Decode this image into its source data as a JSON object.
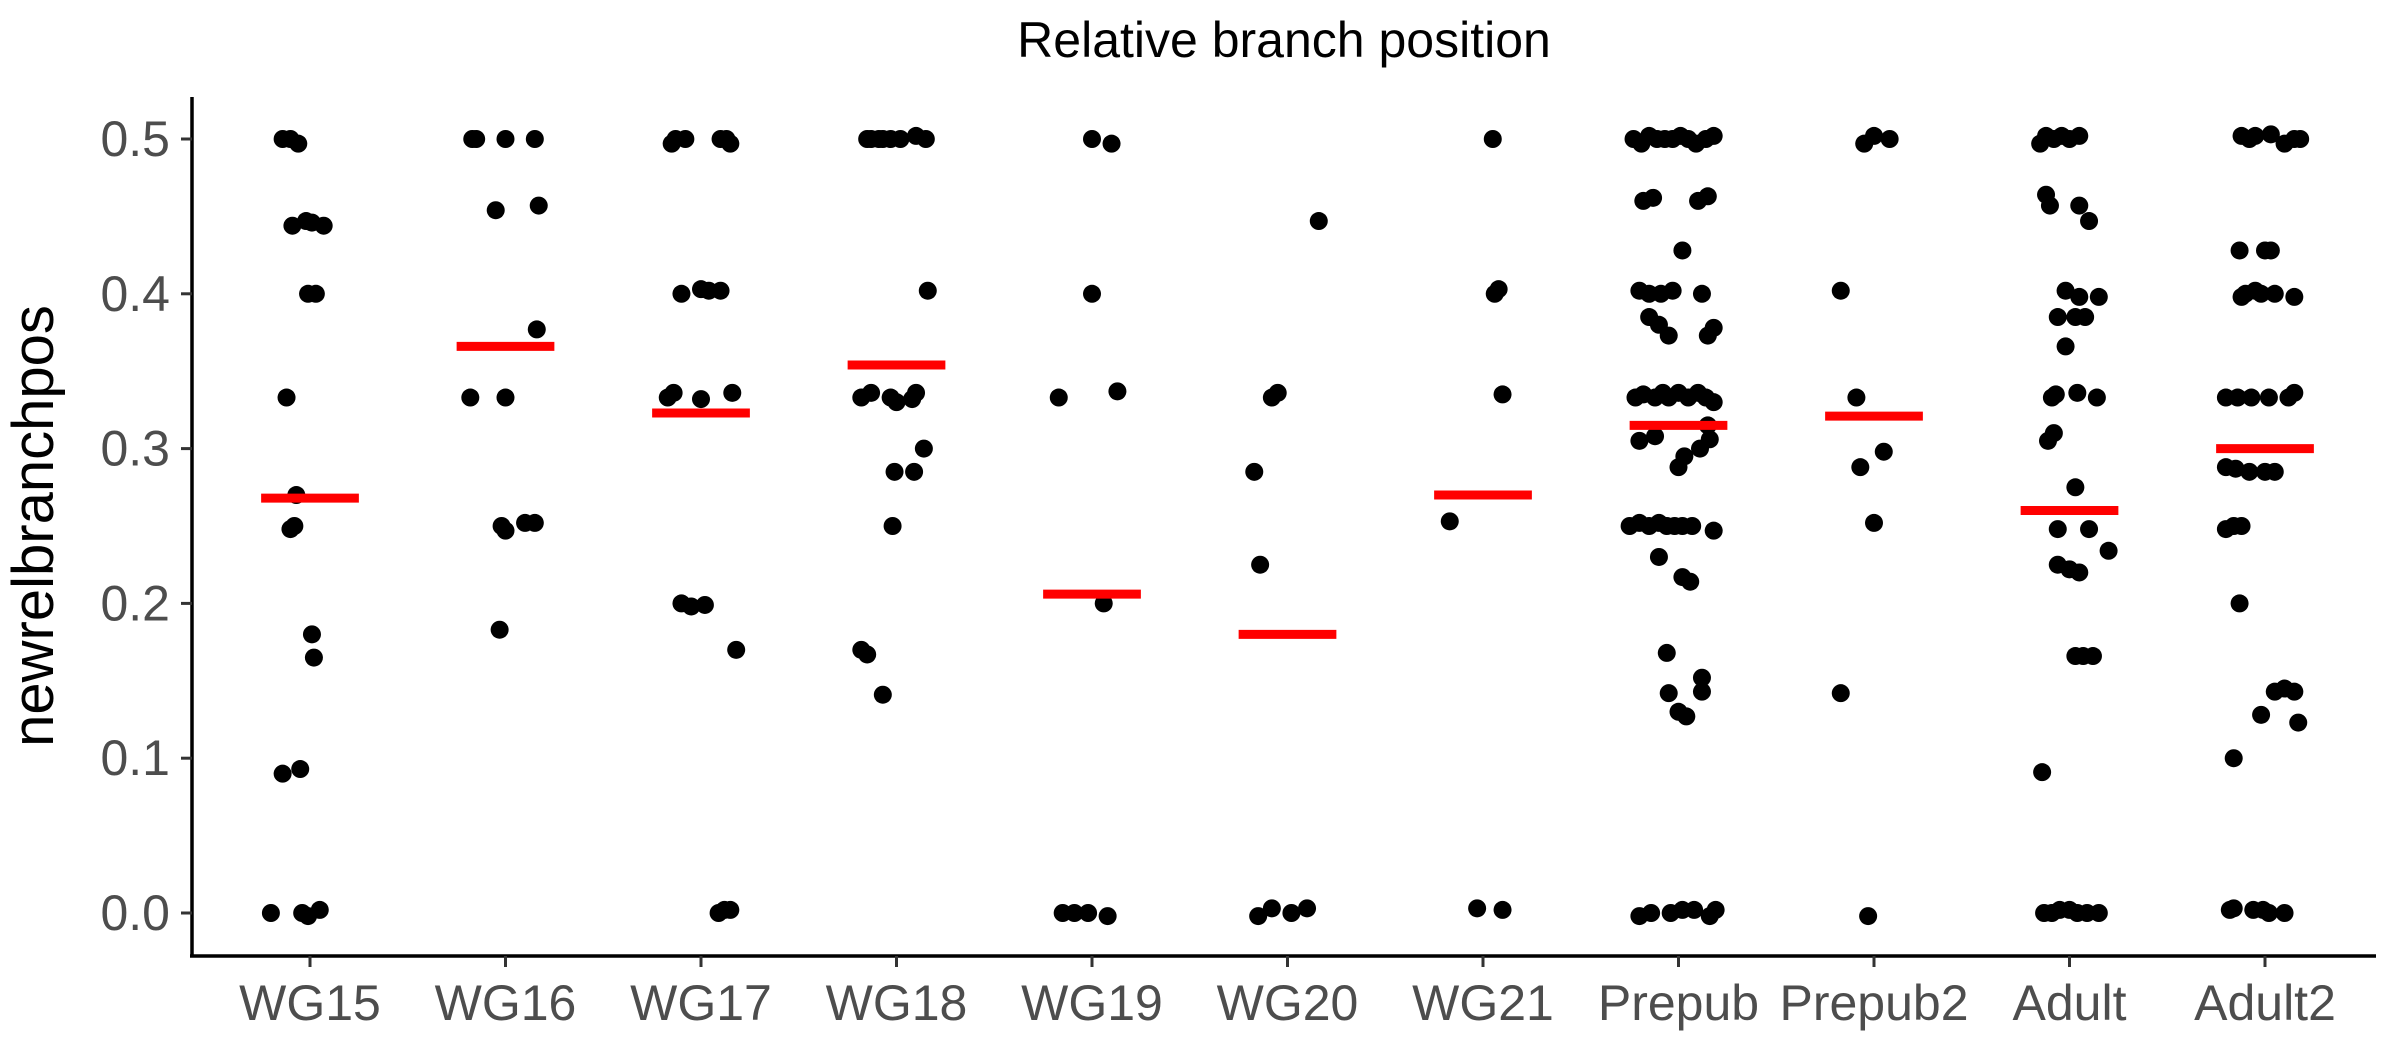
{
  "chart_data": {
    "type": "scatter",
    "title": "Relative branch position",
    "xlabel": "",
    "ylabel": "newrelbranchpos",
    "ylim": [
      -0.027,
      0.527
    ],
    "yticks": [
      0.0,
      0.1,
      0.2,
      0.3,
      0.4,
      0.5
    ],
    "ytick_labels": [
      "0.0",
      "0.1",
      "0.2",
      "0.3",
      "0.4",
      "0.5"
    ],
    "grid": false,
    "categories": [
      "WG15",
      "WG16",
      "WG17",
      "WG18",
      "WG19",
      "WG20",
      "WG21",
      "Prepub",
      "Prepub2",
      "Adult",
      "Adult2"
    ],
    "point_color": "#000000",
    "mean_color": "#ff0000",
    "means": [
      0.268,
      0.366,
      0.323,
      0.354,
      0.206,
      0.18,
      0.27,
      0.315,
      0.321,
      0.26,
      0.3
    ],
    "points": [
      [
        [
          -0.2,
          0.0
        ],
        [
          -0.14,
          0.5
        ],
        [
          -0.1,
          0.5
        ],
        [
          -0.06,
          0.497
        ],
        [
          -0.14,
          0.09
        ],
        [
          -0.05,
          0.093
        ],
        [
          -0.09,
          0.444
        ],
        [
          -0.02,
          0.447
        ],
        [
          0.01,
          0.446
        ],
        [
          0.07,
          0.444
        ],
        [
          -0.01,
          0.4
        ],
        [
          0.03,
          0.4
        ],
        [
          -0.12,
          0.333
        ],
        [
          -0.08,
          0.25
        ],
        [
          -0.1,
          0.248
        ],
        [
          -0.07,
          0.27
        ],
        [
          0.01,
          0.18
        ],
        [
          0.02,
          0.165
        ],
        [
          -0.04,
          0.0
        ],
        [
          -0.01,
          -0.002
        ],
        [
          0.05,
          0.002
        ]
      ],
      [
        [
          -0.18,
          0.333
        ],
        [
          -0.17,
          0.5
        ],
        [
          -0.15,
          0.5
        ],
        [
          0.0,
          0.5
        ],
        [
          0.15,
          0.5
        ],
        [
          -0.05,
          0.454
        ],
        [
          0.17,
          0.457
        ],
        [
          0.16,
          0.377
        ],
        [
          0.0,
          0.333
        ],
        [
          -0.02,
          0.25
        ],
        [
          0.0,
          0.247
        ],
        [
          0.1,
          0.252
        ],
        [
          0.15,
          0.252
        ],
        [
          -0.03,
          0.183
        ]
      ],
      [
        [
          -0.15,
          0.497
        ],
        [
          -0.13,
          0.5
        ],
        [
          -0.08,
          0.5
        ],
        [
          0.1,
          0.5
        ],
        [
          0.13,
          0.5
        ],
        [
          0.15,
          0.497
        ],
        [
          -0.17,
          0.333
        ],
        [
          -0.14,
          0.336
        ],
        [
          0.0,
          0.332
        ],
        [
          0.16,
          0.336
        ],
        [
          -0.1,
          0.4
        ],
        [
          0.0,
          0.403
        ],
        [
          0.04,
          0.402
        ],
        [
          0.1,
          0.402
        ],
        [
          -0.1,
          0.2
        ],
        [
          -0.05,
          0.198
        ],
        [
          0.02,
          0.199
        ],
        [
          0.18,
          0.17
        ],
        [
          0.09,
          0.0
        ],
        [
          0.12,
          0.002
        ],
        [
          0.15,
          0.002
        ]
      ],
      [
        [
          -0.15,
          0.5
        ],
        [
          -0.13,
          0.5
        ],
        [
          -0.09,
          0.5
        ],
        [
          -0.07,
          0.5
        ],
        [
          -0.03,
          0.5
        ],
        [
          0.02,
          0.5
        ],
        [
          0.1,
          0.502
        ],
        [
          0.15,
          0.5
        ],
        [
          0.16,
          0.402
        ],
        [
          -0.18,
          0.333
        ],
        [
          -0.13,
          0.336
        ],
        [
          -0.03,
          0.333
        ],
        [
          0.0,
          0.33
        ],
        [
          0.08,
          0.332
        ],
        [
          0.1,
          0.336
        ],
        [
          0.14,
          0.3
        ],
        [
          -0.01,
          0.285
        ],
        [
          0.09,
          0.285
        ],
        [
          -0.02,
          0.25
        ],
        [
          -0.18,
          0.17
        ],
        [
          -0.15,
          0.167
        ],
        [
          -0.07,
          0.141
        ]
      ],
      [
        [
          0.0,
          0.5
        ],
        [
          0.1,
          0.497
        ],
        [
          -0.17,
          0.333
        ],
        [
          0.0,
          0.4
        ],
        [
          0.13,
          0.337
        ],
        [
          0.06,
          0.2
        ],
        [
          -0.15,
          0.0
        ],
        [
          -0.09,
          0.0
        ],
        [
          -0.02,
          0.0
        ],
        [
          0.08,
          -0.002
        ]
      ],
      [
        [
          -0.17,
          0.285
        ],
        [
          -0.14,
          0.225
        ],
        [
          -0.08,
          0.333
        ],
        [
          -0.05,
          0.336
        ],
        [
          0.16,
          0.447
        ],
        [
          -0.15,
          -0.002
        ],
        [
          -0.08,
          0.003
        ],
        [
          0.02,
          0.0
        ],
        [
          0.1,
          0.003
        ]
      ],
      [
        [
          -0.17,
          0.253
        ],
        [
          0.05,
          0.5
        ],
        [
          0.06,
          0.4
        ],
        [
          0.08,
          0.403
        ],
        [
          0.1,
          0.335
        ],
        [
          -0.03,
          0.003
        ],
        [
          0.1,
          0.002
        ]
      ],
      [
        [
          -0.23,
          0.5
        ],
        [
          -0.19,
          0.497
        ],
        [
          -0.15,
          0.502
        ],
        [
          -0.11,
          0.5
        ],
        [
          -0.07,
          0.5
        ],
        [
          -0.03,
          0.5
        ],
        [
          0.01,
          0.502
        ],
        [
          0.05,
          0.5
        ],
        [
          0.09,
          0.497
        ],
        [
          0.14,
          0.5
        ],
        [
          0.18,
          0.502
        ],
        [
          -0.18,
          0.46
        ],
        [
          -0.13,
          0.462
        ],
        [
          0.1,
          0.46
        ],
        [
          0.15,
          0.463
        ],
        [
          0.02,
          0.428
        ],
        [
          -0.2,
          0.402
        ],
        [
          -0.15,
          0.4
        ],
        [
          -0.09,
          0.4
        ],
        [
          -0.03,
          0.402
        ],
        [
          0.12,
          0.4
        ],
        [
          -0.15,
          0.385
        ],
        [
          -0.1,
          0.38
        ],
        [
          -0.05,
          0.373
        ],
        [
          0.15,
          0.373
        ],
        [
          0.18,
          0.378
        ],
        [
          -0.22,
          0.333
        ],
        [
          -0.18,
          0.335
        ],
        [
          -0.12,
          0.333
        ],
        [
          -0.08,
          0.336
        ],
        [
          -0.05,
          0.333
        ],
        [
          0.0,
          0.336
        ],
        [
          0.05,
          0.333
        ],
        [
          0.1,
          0.336
        ],
        [
          0.14,
          0.333
        ],
        [
          0.18,
          0.33
        ],
        [
          0.15,
          0.315
        ],
        [
          -0.2,
          0.305
        ],
        [
          -0.12,
          0.308
        ],
        [
          0.03,
          0.295
        ],
        [
          0.11,
          0.3
        ],
        [
          0.16,
          0.306
        ],
        [
          0.0,
          0.288
        ],
        [
          -0.25,
          0.25
        ],
        [
          -0.2,
          0.252
        ],
        [
          -0.15,
          0.25
        ],
        [
          -0.1,
          0.252
        ],
        [
          -0.06,
          0.25
        ],
        [
          -0.02,
          0.25
        ],
        [
          0.02,
          0.25
        ],
        [
          0.07,
          0.25
        ],
        [
          0.18,
          0.247
        ],
        [
          -0.1,
          0.23
        ],
        [
          0.02,
          0.217
        ],
        [
          0.06,
          0.214
        ],
        [
          -0.06,
          0.168
        ],
        [
          0.12,
          0.152
        ],
        [
          0.12,
          0.143
        ],
        [
          -0.05,
          0.142
        ],
        [
          0.0,
          0.13
        ],
        [
          0.04,
          0.127
        ],
        [
          -0.2,
          -0.002
        ],
        [
          -0.14,
          0.0
        ],
        [
          -0.04,
          0.0
        ],
        [
          0.02,
          0.002
        ],
        [
          0.08,
          0.002
        ],
        [
          0.16,
          -0.002
        ],
        [
          0.19,
          0.002
        ]
      ],
      [
        [
          -0.17,
          0.402
        ],
        [
          -0.09,
          0.333
        ],
        [
          -0.05,
          0.497
        ],
        [
          0.0,
          0.502
        ],
        [
          0.08,
          0.5
        ],
        [
          -0.07,
          0.288
        ],
        [
          0.05,
          0.298
        ],
        [
          0.0,
          0.252
        ],
        [
          -0.17,
          0.142
        ],
        [
          -0.03,
          -0.002
        ]
      ],
      [
        [
          -0.15,
          0.497
        ],
        [
          -0.12,
          0.502
        ],
        [
          -0.08,
          0.5
        ],
        [
          -0.04,
          0.502
        ],
        [
          0.0,
          0.5
        ],
        [
          0.05,
          0.502
        ],
        [
          -0.12,
          0.464
        ],
        [
          -0.1,
          0.457
        ],
        [
          0.05,
          0.457
        ],
        [
          0.1,
          0.447
        ],
        [
          0.15,
          0.398
        ],
        [
          -0.02,
          0.402
        ],
        [
          0.05,
          0.398
        ],
        [
          -0.06,
          0.385
        ],
        [
          0.03,
          0.385
        ],
        [
          0.08,
          0.385
        ],
        [
          -0.02,
          0.366
        ],
        [
          -0.09,
          0.333
        ],
        [
          -0.07,
          0.335
        ],
        [
          0.04,
          0.336
        ],
        [
          0.14,
          0.333
        ],
        [
          -0.11,
          0.305
        ],
        [
          -0.08,
          0.31
        ],
        [
          0.03,
          0.275
        ],
        [
          -0.06,
          0.248
        ],
        [
          0.1,
          0.248
        ],
        [
          -0.06,
          0.225
        ],
        [
          0.0,
          0.222
        ],
        [
          0.05,
          0.22
        ],
        [
          0.2,
          0.234
        ],
        [
          0.03,
          0.166
        ],
        [
          0.07,
          0.166
        ],
        [
          0.12,
          0.166
        ],
        [
          -0.14,
          0.091
        ],
        [
          -0.13,
          0.0
        ],
        [
          -0.09,
          0.0
        ],
        [
          -0.05,
          0.002
        ],
        [
          0.0,
          0.002
        ],
        [
          0.04,
          0.0
        ],
        [
          0.09,
          0.0
        ],
        [
          0.15,
          0.0
        ]
      ],
      [
        [
          -0.12,
          0.502
        ],
        [
          -0.08,
          0.5
        ],
        [
          -0.05,
          0.502
        ],
        [
          0.03,
          0.503
        ],
        [
          0.1,
          0.497
        ],
        [
          0.15,
          0.5
        ],
        [
          0.18,
          0.5
        ],
        [
          -0.13,
          0.428
        ],
        [
          -0.1,
          0.4
        ],
        [
          -0.05,
          0.402
        ],
        [
          -0.02,
          0.4
        ],
        [
          0.05,
          0.4
        ],
        [
          0.15,
          0.398
        ],
        [
          -0.12,
          0.398
        ],
        [
          0.0,
          0.428
        ],
        [
          0.03,
          0.428
        ],
        [
          -0.2,
          0.333
        ],
        [
          -0.14,
          0.333
        ],
        [
          -0.07,
          0.333
        ],
        [
          0.02,
          0.333
        ],
        [
          0.12,
          0.333
        ],
        [
          0.15,
          0.336
        ],
        [
          -0.2,
          0.288
        ],
        [
          -0.15,
          0.287
        ],
        [
          -0.08,
          0.285
        ],
        [
          0.0,
          0.285
        ],
        [
          0.05,
          0.285
        ],
        [
          -0.2,
          0.248
        ],
        [
          -0.16,
          0.25
        ],
        [
          -0.12,
          0.25
        ],
        [
          -0.13,
          0.2
        ],
        [
          0.1,
          0.145
        ],
        [
          0.15,
          0.143
        ],
        [
          0.05,
          0.143
        ],
        [
          -0.02,
          0.128
        ],
        [
          0.17,
          0.123
        ],
        [
          -0.16,
          0.1
        ],
        [
          -0.18,
          0.002
        ],
        [
          -0.16,
          0.003
        ],
        [
          -0.06,
          0.002
        ],
        [
          -0.01,
          0.002
        ],
        [
          0.02,
          0.0
        ],
        [
          0.1,
          0.0
        ]
      ]
    ]
  }
}
